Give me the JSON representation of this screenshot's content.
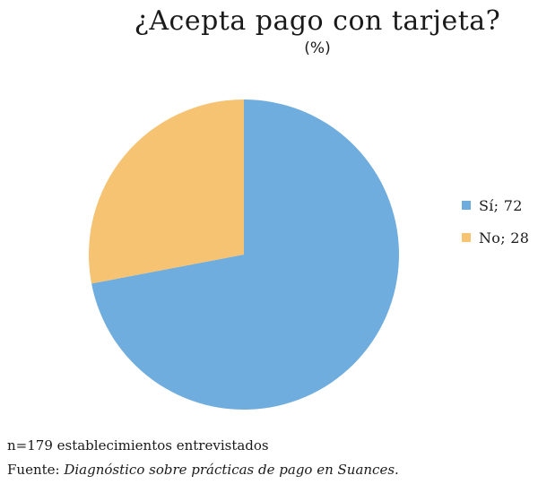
{
  "chart_data": {
    "type": "pie",
    "title": "¿Acepta pago con tarjeta?",
    "subtitle": "(%)",
    "categories": [
      "Sí",
      "No"
    ],
    "values": [
      72,
      28
    ],
    "colors": [
      "#6fadde",
      "#f5c372"
    ],
    "legend_labels": [
      "Sí; 72",
      "No; 28"
    ],
    "legend_position": "right",
    "start": "top",
    "direction": "clockwise"
  },
  "footnotes": {
    "sample": "n=179 establecimientos entrevistados",
    "source_prefix": "Fuente: ",
    "source_title": "Diagnóstico sobre prácticas de pago en Suances."
  }
}
